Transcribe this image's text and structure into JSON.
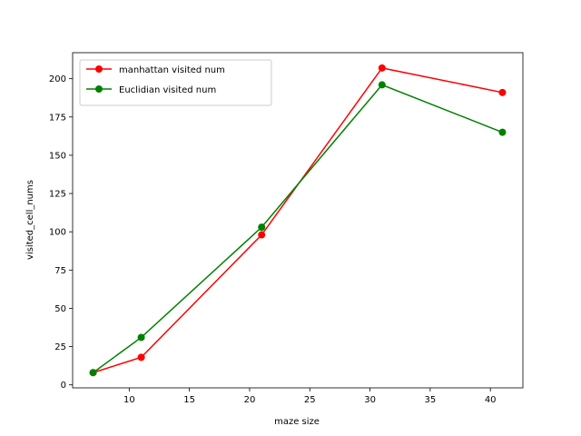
{
  "chart_data": {
    "type": "line",
    "xlabel": "maze size",
    "ylabel": "visited_cell_nums",
    "xlim": [
      5.3,
      42.7
    ],
    "ylim": [
      -1.95,
      217.0
    ],
    "xticks": [
      10,
      15,
      20,
      25,
      30,
      35,
      40
    ],
    "yticks": [
      0,
      25,
      50,
      75,
      100,
      125,
      150,
      175,
      200
    ],
    "grid": false,
    "legend_position": "upper-left",
    "series": [
      {
        "name": "manhattan visited num",
        "color": "#ff0000",
        "marker": "circle",
        "x": [
          7,
          11,
          21,
          31,
          41
        ],
        "y": [
          8,
          18,
          98,
          207,
          191
        ]
      },
      {
        "name": "Euclidian visited num",
        "color": "#008000",
        "marker": "circle",
        "x": [
          7,
          11,
          21,
          31,
          41
        ],
        "y": [
          8,
          31,
          103,
          196,
          165
        ]
      }
    ]
  }
}
